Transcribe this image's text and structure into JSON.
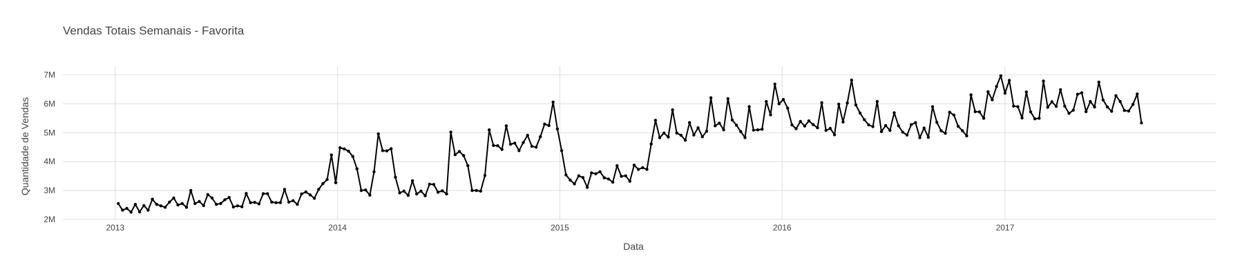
{
  "chart_data": {
    "type": "line",
    "title": "Vendas Totais Semanais - Favorita",
    "xlabel": "Data",
    "ylabel": "Quantidade de Vendas",
    "x_ticks": [
      {
        "label": "2013",
        "value": "2013-01-01"
      },
      {
        "label": "2014",
        "value": "2014-01-01"
      },
      {
        "label": "2015",
        "value": "2015-01-01"
      },
      {
        "label": "2016",
        "value": "2016-01-01"
      },
      {
        "label": "2017",
        "value": "2017-01-01"
      }
    ],
    "y_ticks": [
      {
        "label": "2M",
        "value": 2000000
      },
      {
        "label": "3M",
        "value": 3000000
      },
      {
        "label": "4M",
        "value": 4000000
      },
      {
        "label": "5M",
        "value": 5000000
      },
      {
        "label": "6M",
        "value": 6000000
      },
      {
        "label": "7M",
        "value": 7000000
      }
    ],
    "xlim": [
      "2012-10-07",
      "2017-12-13"
    ],
    "ylim": [
      2000000,
      7300000
    ],
    "grid": true,
    "legend": "none",
    "line_color": "#000000",
    "grid_color": "#dddddd",
    "series": [
      {
        "x": [
          "2013-01-06",
          "2013-01-13",
          "2013-01-20",
          "2013-01-27",
          "2013-02-03",
          "2013-02-10",
          "2013-02-17",
          "2013-02-24",
          "2013-03-03",
          "2013-03-10",
          "2013-03-17",
          "2013-03-24",
          "2013-03-31",
          "2013-04-07",
          "2013-04-14",
          "2013-04-21",
          "2013-04-28",
          "2013-05-05",
          "2013-05-12",
          "2013-05-19",
          "2013-05-26",
          "2013-06-02",
          "2013-06-09",
          "2013-06-16",
          "2013-06-23",
          "2013-06-30",
          "2013-07-07",
          "2013-07-14",
          "2013-07-21",
          "2013-07-28",
          "2013-08-04",
          "2013-08-11",
          "2013-08-18",
          "2013-08-25",
          "2013-09-01",
          "2013-09-08",
          "2013-09-15",
          "2013-09-22",
          "2013-09-29",
          "2013-10-06",
          "2013-10-13",
          "2013-10-20",
          "2013-10-27",
          "2013-11-03",
          "2013-11-10",
          "2013-11-17",
          "2013-11-24",
          "2013-12-01",
          "2013-12-08",
          "2013-12-15",
          "2013-12-22",
          "2013-12-29",
          "2014-01-05",
          "2014-01-12",
          "2014-01-19",
          "2014-01-26",
          "2014-02-02",
          "2014-02-09",
          "2014-02-16",
          "2014-02-23",
          "2014-03-02",
          "2014-03-09",
          "2014-03-16",
          "2014-03-23",
          "2014-03-30",
          "2014-04-06",
          "2014-04-13",
          "2014-04-20",
          "2014-04-27",
          "2014-05-04",
          "2014-05-11",
          "2014-05-18",
          "2014-05-25",
          "2014-06-01",
          "2014-06-08",
          "2014-06-15",
          "2014-06-22",
          "2014-06-29",
          "2014-07-06",
          "2014-07-13",
          "2014-07-20",
          "2014-07-27",
          "2014-08-03",
          "2014-08-10",
          "2014-08-17",
          "2014-08-24",
          "2014-08-31",
          "2014-09-07",
          "2014-09-14",
          "2014-09-21",
          "2014-09-28",
          "2014-10-05",
          "2014-10-12",
          "2014-10-19",
          "2014-10-26",
          "2014-11-02",
          "2014-11-09",
          "2014-11-16",
          "2014-11-23",
          "2014-11-30",
          "2014-12-07",
          "2014-12-14",
          "2014-12-21",
          "2014-12-28",
          "2015-01-04",
          "2015-01-11",
          "2015-01-18",
          "2015-01-25",
          "2015-02-01",
          "2015-02-08",
          "2015-02-15",
          "2015-02-22",
          "2015-03-01",
          "2015-03-08",
          "2015-03-15",
          "2015-03-22",
          "2015-03-29",
          "2015-04-05",
          "2015-04-12",
          "2015-04-19",
          "2015-04-26",
          "2015-05-03",
          "2015-05-10",
          "2015-05-17",
          "2015-05-24",
          "2015-05-31",
          "2015-06-07",
          "2015-06-14",
          "2015-06-21",
          "2015-06-28",
          "2015-07-05",
          "2015-07-12",
          "2015-07-19",
          "2015-07-26",
          "2015-08-02",
          "2015-08-09",
          "2015-08-16",
          "2015-08-23",
          "2015-08-30",
          "2015-09-06",
          "2015-09-13",
          "2015-09-20",
          "2015-09-27",
          "2015-10-04",
          "2015-10-11",
          "2015-10-18",
          "2015-10-25",
          "2015-11-01",
          "2015-11-08",
          "2015-11-15",
          "2015-11-22",
          "2015-11-29",
          "2015-12-06",
          "2015-12-13",
          "2015-12-20",
          "2015-12-27",
          "2016-01-03",
          "2016-01-10",
          "2016-01-17",
          "2016-01-24",
          "2016-01-31",
          "2016-02-07",
          "2016-02-14",
          "2016-02-21",
          "2016-02-28",
          "2016-03-06",
          "2016-03-13",
          "2016-03-20",
          "2016-03-27",
          "2016-04-03",
          "2016-04-10",
          "2016-04-17",
          "2016-04-24",
          "2016-05-01",
          "2016-05-08",
          "2016-05-15",
          "2016-05-22",
          "2016-05-29",
          "2016-06-05",
          "2016-06-12",
          "2016-06-19",
          "2016-06-26",
          "2016-07-03",
          "2016-07-10",
          "2016-07-17",
          "2016-07-24",
          "2016-07-31",
          "2016-08-07",
          "2016-08-14",
          "2016-08-21",
          "2016-08-28",
          "2016-09-04",
          "2016-09-11",
          "2016-09-18",
          "2016-09-25",
          "2016-10-02",
          "2016-10-09",
          "2016-10-16",
          "2016-10-23",
          "2016-10-30",
          "2016-11-06",
          "2016-11-13",
          "2016-11-20",
          "2016-11-27",
          "2016-12-04",
          "2016-12-11",
          "2016-12-18",
          "2016-12-25",
          "2017-01-01",
          "2017-01-08",
          "2017-01-15",
          "2017-01-22",
          "2017-01-29",
          "2017-02-05",
          "2017-02-12",
          "2017-02-19",
          "2017-02-26",
          "2017-03-05",
          "2017-03-12",
          "2017-03-19",
          "2017-03-26",
          "2017-04-02",
          "2017-04-09",
          "2017-04-16",
          "2017-04-23",
          "2017-04-30",
          "2017-05-07",
          "2017-05-14",
          "2017-05-21",
          "2017-05-28",
          "2017-06-04",
          "2017-06-11",
          "2017-06-18",
          "2017-06-25",
          "2017-07-02",
          "2017-07-09",
          "2017-07-16",
          "2017-07-23",
          "2017-07-30",
          "2017-08-06",
          "2017-08-13"
        ],
        "y": [
          2550000,
          2320000,
          2380000,
          2250000,
          2520000,
          2260000,
          2480000,
          2320000,
          2700000,
          2520000,
          2470000,
          2420000,
          2600000,
          2740000,
          2500000,
          2550000,
          2420000,
          3000000,
          2550000,
          2620000,
          2480000,
          2860000,
          2740000,
          2520000,
          2550000,
          2680000,
          2760000,
          2430000,
          2470000,
          2440000,
          2900000,
          2580000,
          2590000,
          2540000,
          2890000,
          2890000,
          2600000,
          2580000,
          2580000,
          3040000,
          2600000,
          2650000,
          2520000,
          2880000,
          2950000,
          2850000,
          2730000,
          3040000,
          3240000,
          3380000,
          4230000,
          3270000,
          4480000,
          4440000,
          4360000,
          4180000,
          3750000,
          3000000,
          3020000,
          2840000,
          3650000,
          4960000,
          4380000,
          4370000,
          4450000,
          3460000,
          2920000,
          2980000,
          2830000,
          3340000,
          2880000,
          2980000,
          2820000,
          3220000,
          3210000,
          2940000,
          2990000,
          2880000,
          5020000,
          4240000,
          4350000,
          4210000,
          3860000,
          3000000,
          3000000,
          2980000,
          3520000,
          5100000,
          4560000,
          4550000,
          4420000,
          5240000,
          4600000,
          4640000,
          4380000,
          4660000,
          4910000,
          4530000,
          4500000,
          4860000,
          5300000,
          5250000,
          6060000,
          5130000,
          4380000,
          3540000,
          3360000,
          3230000,
          3510000,
          3450000,
          3110000,
          3610000,
          3580000,
          3650000,
          3440000,
          3400000,
          3290000,
          3860000,
          3490000,
          3510000,
          3320000,
          3880000,
          3730000,
          3790000,
          3730000,
          4610000,
          5430000,
          4830000,
          4990000,
          4850000,
          5790000,
          4990000,
          4910000,
          4740000,
          5350000,
          4920000,
          5170000,
          4860000,
          5050000,
          6210000,
          5240000,
          5330000,
          5100000,
          6180000,
          5440000,
          5260000,
          5040000,
          4830000,
          5900000,
          5090000,
          5100000,
          5120000,
          6080000,
          5620000,
          6680000,
          6000000,
          6150000,
          5850000,
          5270000,
          5140000,
          5390000,
          5230000,
          5410000,
          5280000,
          5170000,
          6040000,
          5080000,
          5150000,
          4930000,
          5990000,
          5370000,
          6030000,
          6820000,
          5960000,
          5680000,
          5450000,
          5270000,
          5210000,
          6080000,
          5040000,
          5250000,
          5080000,
          5690000,
          5240000,
          5020000,
          4920000,
          5280000,
          5350000,
          4830000,
          5160000,
          4840000,
          5900000,
          5360000,
          5070000,
          4980000,
          5710000,
          5610000,
          5220000,
          5070000,
          4890000,
          6310000,
          5730000,
          5720000,
          5500000,
          6420000,
          6140000,
          6600000,
          6970000,
          6370000,
          6810000,
          5920000,
          5900000,
          5510000,
          6410000,
          5720000,
          5480000,
          5500000,
          6790000,
          5880000,
          6070000,
          5910000,
          6490000,
          5920000,
          5670000,
          5780000,
          6330000,
          6380000,
          5730000,
          6080000,
          5890000,
          6750000,
          6130000,
          5890000,
          5740000,
          6280000,
          6080000,
          5770000,
          5750000,
          5980000,
          6340000,
          5340000
        ]
      }
    ]
  }
}
